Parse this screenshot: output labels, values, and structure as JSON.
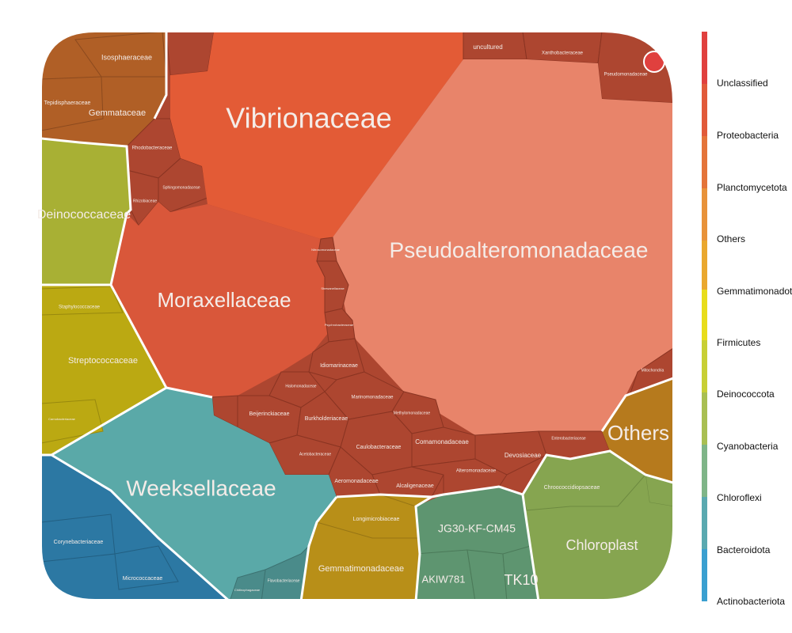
{
  "chart_data": {
    "type": "voronoi-treemap",
    "title": "",
    "legend": {
      "placement": "right",
      "colors": [
        "#e0403e",
        "#e15a3a",
        "#e36f37",
        "#e88335",
        "#eaa02e",
        "#e9bd2a",
        "#e7dd1e",
        "#bccd35",
        "#a9bf42",
        "#89b66e",
        "#61a9a4",
        "#3f9ec8",
        "#2f9ad8"
      ],
      "labels": [
        "Unclassified",
        "Proteobacteria",
        "Planctomycetota",
        "Others",
        "Gemmatimonadota",
        "Firmicutes",
        "Deinococcota",
        "Cyanobacteria",
        "Chloroflexi",
        "Bacteroidota",
        "Actinobacteriota"
      ]
    },
    "cells": [
      {
        "family": "Vibrionaceae",
        "phylum": "Proteobacteria",
        "color": "#e35b36"
      },
      {
        "family": "Pseudoalteromonadaceae",
        "phylum": "Proteobacteria",
        "color": "#e8846a"
      },
      {
        "family": "Moraxellaceae",
        "phylum": "Proteobacteria",
        "color": "#d9573a"
      },
      {
        "family": "Weeksellaceae",
        "phylum": "Bacteroidota",
        "color": "#5aa9a8"
      },
      {
        "family": "Deinococcaceae",
        "phylum": "Deinococcota",
        "color": "#a8b034"
      },
      {
        "family": "Streptococcaceae",
        "phylum": "Firmicutes",
        "color": "#bba912"
      },
      {
        "family": "Gemmataceae",
        "phylum": "Planctomycetota",
        "color": "#b05f26"
      },
      {
        "family": "Isosphaeraceae",
        "phylum": "Planctomycetota",
        "color": "#b05f26"
      },
      {
        "family": "Tepidisphaeraceae",
        "phylum": "Planctomycetota",
        "color": "#b05f26"
      },
      {
        "family": "Others",
        "phylum": "Others",
        "color": "#b67a1d"
      },
      {
        "family": "Chloroplast",
        "phylum": "Cyanobacteria",
        "color": "#86a550"
      },
      {
        "family": "Chroococcidiopsaceae",
        "phylum": "Cyanobacteria",
        "color": "#86a550"
      },
      {
        "family": "JG30-KF-CM45",
        "phylum": "Chloroflexi",
        "color": "#5e9570"
      },
      {
        "family": "AKIW781",
        "phylum": "Chloroflexi",
        "color": "#5e9570"
      },
      {
        "family": "TK10",
        "phylum": "Chloroflexi",
        "color": "#5e9570"
      },
      {
        "family": "Gemmatimonadaceae",
        "phylum": "Gemmatimonadota",
        "color": "#b88f18"
      },
      {
        "family": "Longimicrobiaceae",
        "phylum": "Gemmatimonadota",
        "color": "#b88f18"
      },
      {
        "family": "Corynebacteriaceae",
        "phylum": "Actinobacteriota",
        "color": "#2c78a3"
      },
      {
        "family": "Micrococcaceae",
        "phylum": "Actinobacteriota",
        "color": "#2c78a3"
      },
      {
        "family": "Flavobacteriaceae",
        "phylum": "Bacteroidota",
        "color": "#4a8b8a"
      },
      {
        "family": "Chitinophagaceae",
        "phylum": "Bacteroidota",
        "color": "#4a8b8a"
      },
      {
        "family": "Staphylococcaceae",
        "phylum": "Firmicutes",
        "color": "#bba912"
      },
      {
        "family": "Carnobacteriaceae",
        "phylum": "Firmicutes",
        "color": "#bba912"
      },
      {
        "family": "uncultured",
        "phylum": "Proteobacteria",
        "color": "#ad4630"
      },
      {
        "family": "Xanthobacteraceae",
        "phylum": "Proteobacteria",
        "color": "#ad4630"
      },
      {
        "family": "Pseudomonadaceae",
        "phylum": "Proteobacteria",
        "color": "#ad4630"
      },
      {
        "family": "Rhodobacteraceae",
        "phylum": "Proteobacteria",
        "color": "#ad4630"
      },
      {
        "family": "Sphingomonadaceae",
        "phylum": "Proteobacteria",
        "color": "#ad4630"
      },
      {
        "family": "Rhizobiaceae",
        "phylum": "Proteobacteria",
        "color": "#ad4630"
      },
      {
        "family": "Idiomarinaceae",
        "phylum": "Proteobacteria",
        "color": "#ad4630"
      },
      {
        "family": "Halomonadaceae",
        "phylum": "Proteobacteria",
        "color": "#ad4630"
      },
      {
        "family": "Marinomonadaceae",
        "phylum": "Proteobacteria",
        "color": "#ad4630"
      },
      {
        "family": "Beijerinckiaceae",
        "phylum": "Proteobacteria",
        "color": "#ad4630"
      },
      {
        "family": "Burkholderiaceae",
        "phylum": "Proteobacteria",
        "color": "#ad4630"
      },
      {
        "family": "Methylomonadaceae",
        "phylum": "Proteobacteria",
        "color": "#ad4630"
      },
      {
        "family": "Caulobacteraceae",
        "phylum": "Proteobacteria",
        "color": "#ad4630"
      },
      {
        "family": "Comamonadaceae",
        "phylum": "Proteobacteria",
        "color": "#ad4630"
      },
      {
        "family": "Acetobacteraceae",
        "phylum": "Proteobacteria",
        "color": "#ad4630"
      },
      {
        "family": "Aeromonadaceae",
        "phylum": "Proteobacteria",
        "color": "#ad4630"
      },
      {
        "family": "Alcaligenaceae",
        "phylum": "Proteobacteria",
        "color": "#ad4630"
      },
      {
        "family": "Alteromonadaceae",
        "phylum": "Proteobacteria",
        "color": "#ad4630"
      },
      {
        "family": "Devosiaceae",
        "phylum": "Proteobacteria",
        "color": "#ad4630"
      },
      {
        "family": "Enterobacteriaceae",
        "phylum": "Proteobacteria",
        "color": "#ad4630"
      },
      {
        "family": "Mitochondria",
        "phylum": "Proteobacteria",
        "color": "#ad4630"
      },
      {
        "family": "Nitrosomonadaceae",
        "phylum": "Proteobacteria",
        "color": "#ad4630"
      },
      {
        "family": "Shewanellaceae",
        "phylum": "Proteobacteria",
        "color": "#ad4630"
      },
      {
        "family": "Psychrobacteraceae",
        "phylum": "Proteobacteria",
        "color": "#ad4630"
      }
    ]
  }
}
